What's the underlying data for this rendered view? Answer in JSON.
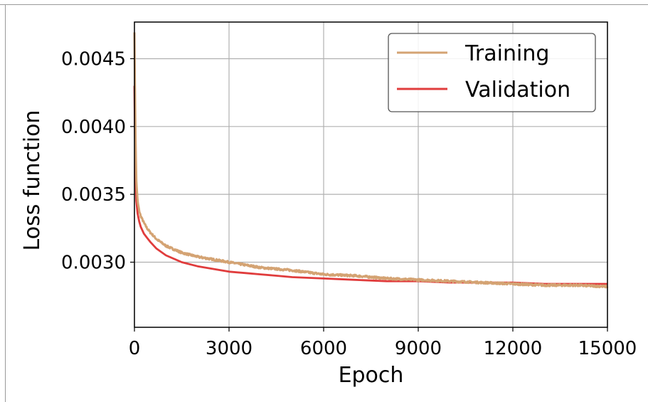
{
  "chart_data": {
    "type": "line",
    "xlabel": "Epoch",
    "ylabel": "Loss function",
    "xlim": [
      0,
      15000
    ],
    "ylim": [
      0.00252,
      0.00477
    ],
    "xticks": [
      0,
      3000,
      6000,
      9000,
      12000,
      15000
    ],
    "xtick_labels": [
      "0",
      "3000",
      "6000",
      "9000",
      "12000",
      "15000"
    ],
    "yticks": [
      0.003,
      0.0035,
      0.004,
      0.0045
    ],
    "ytick_labels": [
      "0.0030",
      "0.0035",
      "0.0040",
      "0.0045"
    ],
    "grid": true,
    "legend_position": "top-right",
    "series": [
      {
        "name": "Training",
        "color": "#d4a373",
        "x": [
          0,
          30,
          60,
          100,
          150,
          200,
          300,
          400,
          500,
          700,
          1000,
          1500,
          2000,
          2500,
          3000,
          3500,
          4000,
          4500,
          5000,
          6000,
          7000,
          8000,
          9000,
          10000,
          11000,
          12000,
          13000,
          14000,
          15000
        ],
        "y": [
          0.0047,
          0.004,
          0.0036,
          0.00345,
          0.00338,
          0.00334,
          0.00329,
          0.00325,
          0.00322,
          0.00317,
          0.00312,
          0.00307,
          0.00304,
          0.00302,
          0.003,
          0.00298,
          0.00296,
          0.00295,
          0.00294,
          0.00291,
          0.0029,
          0.00288,
          0.00287,
          0.00286,
          0.00285,
          0.00284,
          0.00283,
          0.00283,
          0.00282
        ]
      },
      {
        "name": "Validation",
        "color": "#e03c3c",
        "x": [
          0,
          30,
          60,
          100,
          150,
          200,
          300,
          400,
          500,
          700,
          1000,
          1500,
          2000,
          2500,
          3000,
          3500,
          4000,
          4500,
          5000,
          6000,
          7000,
          8000,
          9000,
          10000,
          11000,
          12000,
          13000,
          14000,
          15000
        ],
        "y": [
          0.0043,
          0.0037,
          0.00345,
          0.00336,
          0.0033,
          0.00326,
          0.00321,
          0.00318,
          0.00315,
          0.0031,
          0.00305,
          0.003,
          0.00297,
          0.00295,
          0.00293,
          0.00292,
          0.00291,
          0.0029,
          0.00289,
          0.00288,
          0.00287,
          0.00286,
          0.00286,
          0.00285,
          0.00285,
          0.00285,
          0.00284,
          0.00284,
          0.00284
        ]
      }
    ]
  }
}
